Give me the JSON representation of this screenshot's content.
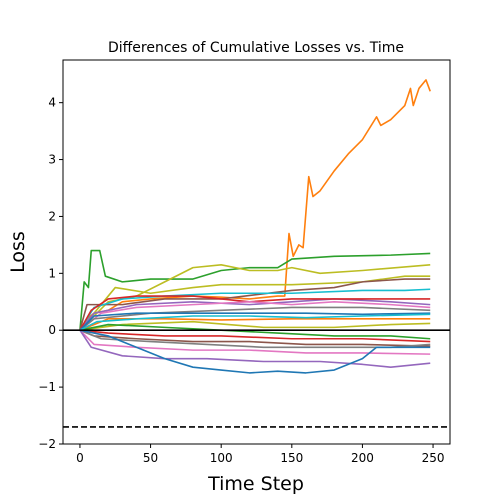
{
  "chart_data": {
    "type": "line",
    "title": "Differences of Cumulative Losses vs. Time",
    "xlabel": "Time Step",
    "ylabel": "Loss",
    "xlim": [
      -12,
      262
    ],
    "ylim": [
      -2.0,
      4.75
    ],
    "xticks": [
      0,
      50,
      100,
      150,
      200,
      250
    ],
    "yticks": [
      -2,
      -1,
      0,
      1,
      2,
      3,
      4
    ],
    "grid": false,
    "legend": "none",
    "reference_lines": [
      {
        "y": 0,
        "style": "solid",
        "color": "#000000"
      },
      {
        "y": -1.7,
        "style": "dashed",
        "color": "#000000"
      }
    ],
    "series": [
      {
        "color": "#ff7f0e",
        "points": [
          [
            0,
            0
          ],
          [
            5,
            0.2
          ],
          [
            10,
            0.3
          ],
          [
            20,
            0.35
          ],
          [
            30,
            0.5
          ],
          [
            50,
            0.55
          ],
          [
            80,
            0.6
          ],
          [
            100,
            0.58
          ],
          [
            120,
            0.55
          ],
          [
            140,
            0.6
          ],
          [
            145,
            0.6
          ],
          [
            148,
            1.7
          ],
          [
            151,
            1.3
          ],
          [
            155,
            1.5
          ],
          [
            158,
            1.45
          ],
          [
            162,
            2.7
          ],
          [
            165,
            2.35
          ],
          [
            170,
            2.45
          ],
          [
            180,
            2.8
          ],
          [
            190,
            3.1
          ],
          [
            200,
            3.35
          ],
          [
            210,
            3.75
          ],
          [
            213,
            3.6
          ],
          [
            220,
            3.7
          ],
          [
            230,
            3.95
          ],
          [
            234,
            4.25
          ],
          [
            236,
            3.95
          ],
          [
            240,
            4.25
          ],
          [
            245,
            4.4
          ],
          [
            248,
            4.2
          ]
        ]
      },
      {
        "color": "#2ca02c",
        "points": [
          [
            0,
            0
          ],
          [
            3,
            0.85
          ],
          [
            6,
            0.75
          ],
          [
            8,
            1.4
          ],
          [
            14,
            1.4
          ],
          [
            18,
            0.95
          ],
          [
            30,
            0.85
          ],
          [
            50,
            0.9
          ],
          [
            80,
            0.9
          ],
          [
            100,
            1.05
          ],
          [
            120,
            1.1
          ],
          [
            140,
            1.1
          ],
          [
            150,
            1.25
          ],
          [
            180,
            1.3
          ],
          [
            220,
            1.32
          ],
          [
            248,
            1.35
          ]
        ]
      },
      {
        "color": "#bcbd22",
        "points": [
          [
            0,
            0
          ],
          [
            20,
            0.5
          ],
          [
            40,
            0.6
          ],
          [
            60,
            0.85
          ],
          [
            80,
            1.1
          ],
          [
            100,
            1.15
          ],
          [
            120,
            1.05
          ],
          [
            140,
            1.05
          ],
          [
            150,
            1.1
          ],
          [
            170,
            1.0
          ],
          [
            200,
            1.05
          ],
          [
            248,
            1.15
          ]
        ]
      },
      {
        "color": "#bcbd22",
        "points": [
          [
            0,
            0
          ],
          [
            25,
            0.75
          ],
          [
            50,
            0.65
          ],
          [
            80,
            0.75
          ],
          [
            100,
            0.8
          ],
          [
            150,
            0.8
          ],
          [
            200,
            0.85
          ],
          [
            230,
            0.95
          ],
          [
            248,
            0.95
          ]
        ]
      },
      {
        "color": "#8c564b",
        "points": [
          [
            0,
            0
          ],
          [
            5,
            0.45
          ],
          [
            30,
            0.45
          ],
          [
            60,
            0.55
          ],
          [
            100,
            0.55
          ],
          [
            150,
            0.7
          ],
          [
            180,
            0.75
          ],
          [
            200,
            0.85
          ],
          [
            230,
            0.9
          ],
          [
            248,
            0.9
          ]
        ]
      },
      {
        "color": "#17becf",
        "points": [
          [
            0,
            0
          ],
          [
            10,
            0.4
          ],
          [
            30,
            0.55
          ],
          [
            60,
            0.6
          ],
          [
            100,
            0.65
          ],
          [
            150,
            0.65
          ],
          [
            200,
            0.7
          ],
          [
            230,
            0.7
          ],
          [
            248,
            0.72
          ]
        ]
      },
      {
        "color": "#9467bd",
        "points": [
          [
            0,
            0
          ],
          [
            10,
            0.3
          ],
          [
            40,
            0.45
          ],
          [
            80,
            0.5
          ],
          [
            120,
            0.45
          ],
          [
            150,
            0.5
          ],
          [
            180,
            0.55
          ],
          [
            220,
            0.5
          ],
          [
            248,
            0.45
          ]
        ]
      },
      {
        "color": "#d62728",
        "points": [
          [
            0,
            0
          ],
          [
            8,
            0.35
          ],
          [
            20,
            0.55
          ],
          [
            40,
            0.6
          ],
          [
            80,
            0.6
          ],
          [
            120,
            0.5
          ],
          [
            150,
            0.55
          ],
          [
            200,
            0.55
          ],
          [
            248,
            0.55
          ]
        ]
      },
      {
        "color": "#e377c2",
        "points": [
          [
            0,
            0
          ],
          [
            15,
            0.3
          ],
          [
            40,
            0.4
          ],
          [
            80,
            0.45
          ],
          [
            120,
            0.5
          ],
          [
            150,
            0.45
          ],
          [
            180,
            0.5
          ],
          [
            220,
            0.45
          ],
          [
            248,
            0.4
          ]
        ]
      },
      {
        "color": "#7f7f7f",
        "points": [
          [
            0,
            0
          ],
          [
            10,
            0.2
          ],
          [
            50,
            0.3
          ],
          [
            100,
            0.35
          ],
          [
            150,
            0.4
          ],
          [
            200,
            0.4
          ],
          [
            248,
            0.35
          ]
        ]
      },
      {
        "color": "#1f77b4",
        "points": [
          [
            0,
            0
          ],
          [
            10,
            0.25
          ],
          [
            40,
            0.3
          ],
          [
            80,
            0.3
          ],
          [
            120,
            0.3
          ],
          [
            160,
            0.3
          ],
          [
            200,
            0.28
          ],
          [
            248,
            0.3
          ]
        ]
      },
      {
        "color": "#ff7f0e",
        "points": [
          [
            0,
            0
          ],
          [
            20,
            0.2
          ],
          [
            60,
            0.2
          ],
          [
            100,
            0.18
          ],
          [
            150,
            0.2
          ],
          [
            200,
            0.2
          ],
          [
            248,
            0.2
          ]
        ]
      },
      {
        "color": "#bcbd22",
        "points": [
          [
            0,
            0
          ],
          [
            30,
            0.1
          ],
          [
            80,
            0.15
          ],
          [
            130,
            0.05
          ],
          [
            180,
            0.05
          ],
          [
            220,
            0.1
          ],
          [
            248,
            0.12
          ]
        ]
      },
      {
        "color": "#2ca02c",
        "points": [
          [
            0,
            0
          ],
          [
            20,
            0.1
          ],
          [
            60,
            0.05
          ],
          [
            100,
            0.0
          ],
          [
            140,
            -0.05
          ],
          [
            180,
            -0.1
          ],
          [
            220,
            -0.1
          ],
          [
            248,
            -0.15
          ]
        ]
      },
      {
        "color": "#8c564b",
        "points": [
          [
            0,
            0
          ],
          [
            10,
            -0.1
          ],
          [
            40,
            -0.15
          ],
          [
            80,
            -0.2
          ],
          [
            120,
            -0.2
          ],
          [
            160,
            -0.25
          ],
          [
            200,
            -0.25
          ],
          [
            248,
            -0.28
          ]
        ]
      },
      {
        "color": "#d62728",
        "points": [
          [
            0,
            0
          ],
          [
            20,
            -0.05
          ],
          [
            60,
            -0.1
          ],
          [
            100,
            -0.1
          ],
          [
            150,
            -0.15
          ],
          [
            200,
            -0.15
          ],
          [
            248,
            -0.2
          ]
        ]
      },
      {
        "color": "#7f7f7f",
        "points": [
          [
            0,
            0
          ],
          [
            15,
            -0.15
          ],
          [
            50,
            -0.2
          ],
          [
            90,
            -0.25
          ],
          [
            130,
            -0.3
          ],
          [
            170,
            -0.3
          ],
          [
            220,
            -0.3
          ],
          [
            248,
            -0.25
          ]
        ]
      },
      {
        "color": "#e377c2",
        "points": [
          [
            0,
            0
          ],
          [
            10,
            -0.25
          ],
          [
            40,
            -0.3
          ],
          [
            80,
            -0.35
          ],
          [
            120,
            -0.35
          ],
          [
            160,
            -0.4
          ],
          [
            200,
            -0.4
          ],
          [
            248,
            -0.42
          ]
        ]
      },
      {
        "color": "#9467bd",
        "points": [
          [
            0,
            0
          ],
          [
            8,
            -0.3
          ],
          [
            30,
            -0.45
          ],
          [
            60,
            -0.5
          ],
          [
            90,
            -0.5
          ],
          [
            130,
            -0.55
          ],
          [
            170,
            -0.55
          ],
          [
            200,
            -0.6
          ],
          [
            220,
            -0.65
          ],
          [
            248,
            -0.58
          ]
        ]
      },
      {
        "color": "#1f77b4",
        "points": [
          [
            0,
            0
          ],
          [
            20,
            -0.1
          ],
          [
            40,
            -0.3
          ],
          [
            60,
            -0.5
          ],
          [
            80,
            -0.65
          ],
          [
            100,
            -0.7
          ],
          [
            120,
            -0.75
          ],
          [
            140,
            -0.72
          ],
          [
            160,
            -0.75
          ],
          [
            180,
            -0.7
          ],
          [
            200,
            -0.5
          ],
          [
            210,
            -0.3
          ],
          [
            220,
            -0.3
          ],
          [
            248,
            -0.3
          ]
        ]
      },
      {
        "color": "#17becf",
        "points": [
          [
            0,
            0
          ],
          [
            12,
            0.15
          ],
          [
            40,
            0.2
          ],
          [
            80,
            0.25
          ],
          [
            120,
            0.25
          ],
          [
            160,
            0.22
          ],
          [
            200,
            0.25
          ],
          [
            248,
            0.28
          ]
        ]
      }
    ]
  }
}
